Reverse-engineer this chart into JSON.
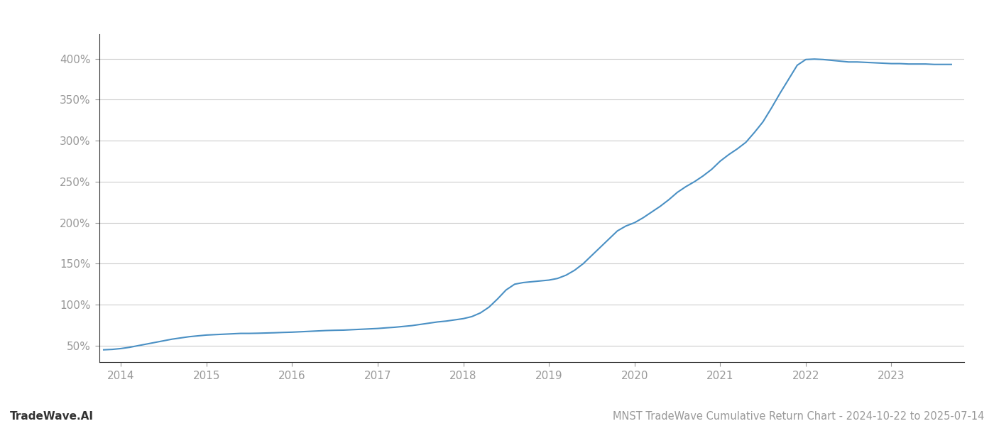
{
  "title": "MNST TradeWave Cumulative Return Chart - 2024-10-22 to 2025-07-14",
  "watermark": "TradeWave.AI",
  "line_color": "#4a90c4",
  "background_color": "#ffffff",
  "grid_color": "#cccccc",
  "x_years": [
    2014,
    2015,
    2016,
    2017,
    2018,
    2019,
    2020,
    2021,
    2022,
    2023
  ],
  "x_data": [
    2013.8,
    2013.9,
    2014.0,
    2014.1,
    2014.2,
    2014.3,
    2014.4,
    2014.5,
    2014.6,
    2014.7,
    2014.8,
    2014.9,
    2015.0,
    2015.1,
    2015.2,
    2015.3,
    2015.4,
    2015.5,
    2015.6,
    2015.7,
    2015.8,
    2015.9,
    2016.0,
    2016.1,
    2016.2,
    2016.3,
    2016.4,
    2016.5,
    2016.6,
    2016.7,
    2016.8,
    2016.9,
    2017.0,
    2017.1,
    2017.2,
    2017.3,
    2017.4,
    2017.5,
    2017.6,
    2017.7,
    2017.8,
    2017.9,
    2018.0,
    2018.1,
    2018.2,
    2018.3,
    2018.4,
    2018.5,
    2018.6,
    2018.7,
    2018.8,
    2018.9,
    2019.0,
    2019.1,
    2019.2,
    2019.3,
    2019.4,
    2019.5,
    2019.6,
    2019.7,
    2019.8,
    2019.9,
    2020.0,
    2020.1,
    2020.2,
    2020.3,
    2020.4,
    2020.5,
    2020.6,
    2020.7,
    2020.8,
    2020.9,
    2021.0,
    2021.1,
    2021.2,
    2021.3,
    2021.4,
    2021.5,
    2021.6,
    2021.7,
    2021.8,
    2021.9,
    2022.0,
    2022.1,
    2022.2,
    2022.3,
    2022.4,
    2022.5,
    2022.6,
    2022.7,
    2022.8,
    2022.9,
    2023.0,
    2023.1,
    2023.2,
    2023.3,
    2023.4,
    2023.5,
    2023.6,
    2023.7
  ],
  "y_data": [
    45.0,
    45.5,
    46.5,
    48.0,
    50.0,
    52.0,
    54.0,
    56.0,
    58.0,
    59.5,
    61.0,
    62.0,
    63.0,
    63.5,
    64.0,
    64.5,
    65.0,
    65.0,
    65.2,
    65.5,
    65.8,
    66.2,
    66.5,
    67.0,
    67.5,
    68.0,
    68.5,
    68.8,
    69.0,
    69.5,
    70.0,
    70.5,
    71.0,
    71.8,
    72.5,
    73.5,
    74.5,
    76.0,
    77.5,
    79.0,
    80.0,
    81.5,
    83.0,
    85.5,
    90.0,
    97.0,
    107.0,
    118.0,
    125.0,
    127.0,
    128.0,
    129.0,
    130.0,
    132.0,
    136.0,
    142.0,
    150.0,
    160.0,
    170.0,
    180.0,
    190.0,
    196.0,
    200.0,
    206.0,
    213.0,
    220.0,
    228.0,
    237.0,
    244.0,
    250.0,
    257.0,
    265.0,
    275.0,
    283.0,
    290.0,
    298.0,
    310.0,
    323.0,
    340.0,
    358.0,
    375.0,
    392.0,
    399.0,
    399.5,
    399.0,
    398.0,
    397.0,
    396.0,
    396.0,
    395.5,
    395.0,
    394.5,
    394.0,
    394.0,
    393.5,
    393.5,
    393.5,
    393.0,
    393.0,
    393.0
  ],
  "ylim": [
    30,
    430
  ],
  "yticks": [
    50,
    100,
    150,
    200,
    250,
    300,
    350,
    400
  ],
  "xlim": [
    2013.75,
    2023.85
  ],
  "line_width": 1.5,
  "title_fontsize": 10.5,
  "watermark_fontsize": 11,
  "tick_fontsize": 11,
  "tick_color": "#999999",
  "spine_color": "#333333"
}
